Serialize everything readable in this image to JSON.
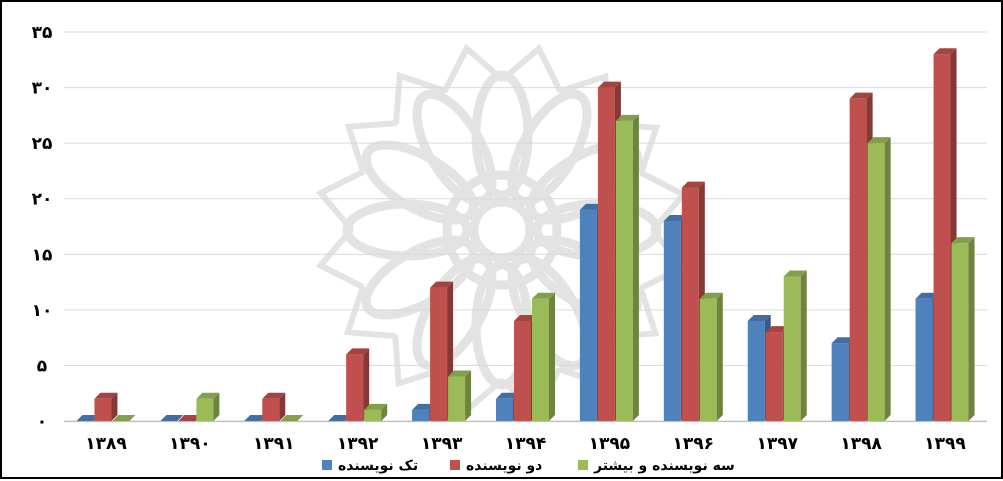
{
  "chart_data": {
    "type": "bar",
    "title": "",
    "xlabel": "",
    "ylabel": "",
    "ylim": [
      0,
      35
    ],
    "y_ticks": [
      "۰",
      "۵",
      "۱۰",
      "۱۵",
      "۲۰",
      "۲۵",
      "۳۰",
      "۳۵"
    ],
    "y_tick_values": [
      0,
      5,
      10,
      15,
      20,
      25,
      30,
      35
    ],
    "categories": [
      "۱۳۸۹",
      "۱۳۹۰",
      "۱۳۹۱",
      "۱۳۹۲",
      "۱۳۹۳",
      "۱۳۹۴",
      "۱۳۹۵",
      "۱۳۹۶",
      "۱۳۹۷",
      "۱۳۹۸",
      "۱۳۹۹"
    ],
    "series": [
      {
        "name": "تک نویسنده",
        "color": "#4F81BD",
        "values": [
          0,
          0,
          0,
          0,
          1,
          2,
          19,
          18,
          9,
          7,
          11
        ]
      },
      {
        "name": "دو نویسنده",
        "color": "#C0504D",
        "values": [
          2,
          0,
          2,
          6,
          12,
          9,
          30,
          21,
          8,
          29,
          33
        ]
      },
      {
        "name": "سه نویسنده و بیشتر",
        "color": "#9BBB59",
        "values": [
          0,
          2,
          0,
          1,
          4,
          11,
          27,
          11,
          13,
          25,
          16
        ]
      }
    ],
    "grid": true,
    "legend_position": "bottom",
    "style": "3d-clustered-bar",
    "watermark": "decorative floral logo"
  }
}
